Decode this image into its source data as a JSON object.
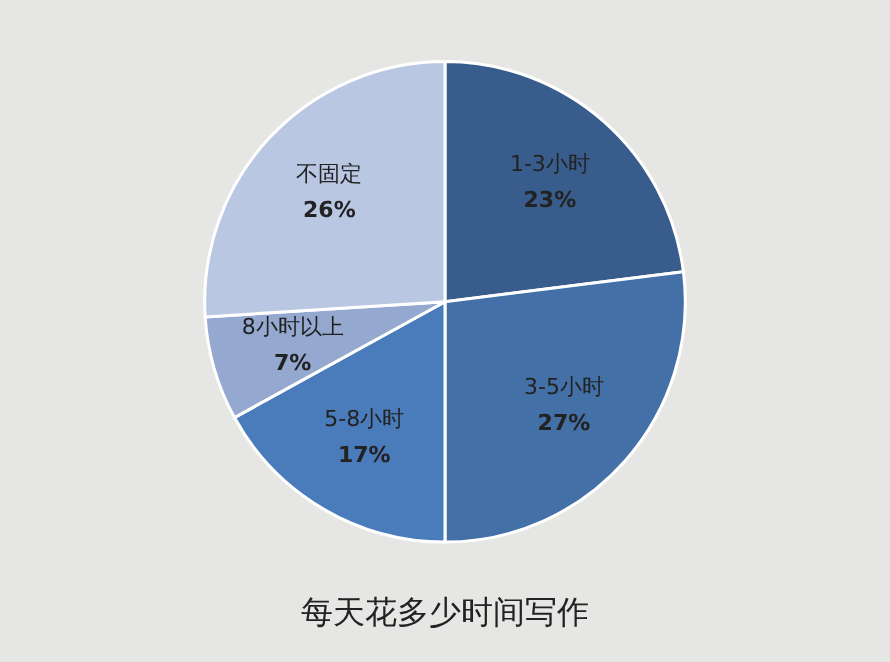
{
  "chart_data": {
    "type": "pie",
    "title": "每天花多少时间写作",
    "categories": [
      "1-3小时",
      "3-5小时",
      "5-8小时",
      "8小时以上",
      "不固定"
    ],
    "values": [
      23,
      27,
      17,
      7,
      26
    ],
    "value_labels": [
      "23%",
      "27%",
      "17%",
      "7%",
      "26%"
    ],
    "colors": [
      "#385d8c",
      "#4370a6",
      "#4a7cbb",
      "#94a8d0",
      "#b9c7e2"
    ],
    "legend": false
  }
}
